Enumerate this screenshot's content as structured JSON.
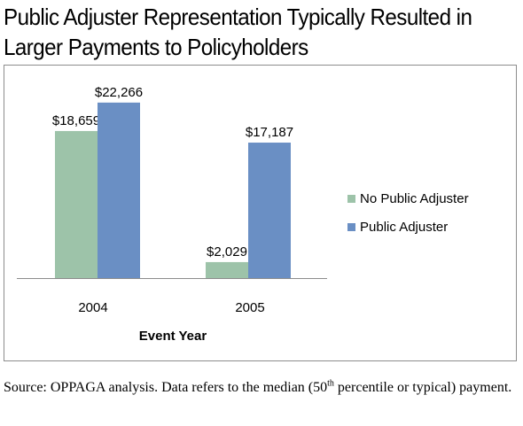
{
  "title": {
    "line1": "Public Adjuster Representation Typically Resulted in",
    "line2": "Larger Payments to Policyholders"
  },
  "chart_data": {
    "type": "bar",
    "categories": [
      "2004",
      "2005"
    ],
    "series": [
      {
        "name": "No Public Adjuster",
        "values": [
          18659,
          2029
        ],
        "labels": [
          "$18,659",
          "$2,029"
        ],
        "color": "#9dc3a9"
      },
      {
        "name": "Public Adjuster",
        "values": [
          22266,
          17187
        ],
        "labels": [
          "$22,266",
          "$17,187"
        ],
        "color": "#6a8fc4"
      }
    ],
    "xlabel": "Event Year",
    "ylabel": "",
    "ylim": [
      0,
      24000
    ],
    "grid": false,
    "legend_position": "right"
  },
  "source": {
    "prefix": "Source:  OPPAGA analysis.  Data refers to the median (50",
    "superscript": "th",
    "suffix": " percentile or typical) payment."
  }
}
